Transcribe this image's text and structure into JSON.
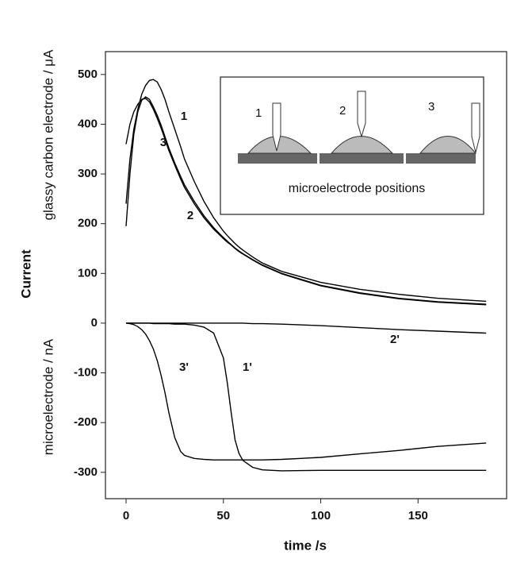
{
  "chart_data": {
    "type": "line",
    "xlabel": "time /s",
    "ylabel": "Current",
    "ylabel_upper": "glassy carbon electrode / μA",
    "ylabel_lower": "microelectrode / nA",
    "x": [
      0,
      2,
      4,
      6,
      8,
      10,
      12,
      14,
      16,
      18,
      20,
      22,
      25,
      28,
      30,
      35,
      40,
      45,
      50,
      52,
      54,
      56,
      58,
      60,
      65,
      70,
      80,
      100,
      120,
      140,
      160,
      185
    ],
    "series": [
      {
        "name": "1",
        "color": "#000000",
        "values": [
          240,
          330,
          390,
          430,
          460,
          478,
          488,
          490,
          485,
          470,
          450,
          425,
          390,
          355,
          330,
          285,
          245,
          212,
          185,
          176,
          168,
          160,
          153,
          147,
          133,
          121,
          104,
          82,
          68,
          58,
          50,
          44
        ]
      },
      {
        "name": "2",
        "color": "#000000",
        "values": [
          195,
          300,
          380,
          425,
          448,
          455,
          450,
          435,
          418,
          398,
          375,
          352,
          322,
          295,
          278,
          245,
          216,
          192,
          172,
          165,
          158,
          151,
          145,
          140,
          128,
          117,
          100,
          76,
          61,
          50,
          43,
          38
        ]
      },
      {
        "name": "3",
        "color": "#000000",
        "values": [
          360,
          400,
          425,
          440,
          450,
          452,
          445,
          430,
          412,
          392,
          370,
          347,
          318,
          290,
          273,
          240,
          212,
          189,
          170,
          163,
          157,
          150,
          144,
          139,
          127,
          116,
          99,
          75,
          60,
          49,
          42,
          37
        ]
      },
      {
        "name": "1'",
        "color": "#000000",
        "values": [
          0,
          0,
          0,
          0,
          0,
          0,
          0,
          -1,
          -1,
          -1,
          -1,
          -1,
          -2,
          -2,
          -2,
          -4,
          -8,
          -20,
          -70,
          -120,
          -180,
          -235,
          -262,
          -276,
          -290,
          -295,
          -297,
          -296,
          -296,
          -296,
          -296,
          -296
        ]
      },
      {
        "name": "2'",
        "color": "#000000",
        "values": [
          0,
          0,
          0,
          0,
          0,
          0,
          0,
          0,
          0,
          0,
          0,
          0,
          0,
          0,
          0,
          0,
          0,
          0,
          0,
          0,
          0,
          0,
          0,
          0,
          -1,
          -1,
          -2,
          -5,
          -9,
          -13,
          -16,
          -20
        ]
      },
      {
        "name": "3'",
        "color": "#000000",
        "values": [
          0,
          -1,
          -3,
          -7,
          -13,
          -22,
          -35,
          -52,
          -75,
          -105,
          -140,
          -180,
          -230,
          -258,
          -266,
          -272,
          -274,
          -275,
          -275,
          -275,
          -275,
          -275,
          -275,
          -275,
          -275,
          -275,
          -274,
          -270,
          -263,
          -256,
          -248,
          -241
        ]
      }
    ],
    "xlim": [
      -10.6,
      195.5
    ],
    "xticks": [
      0,
      50,
      100,
      150
    ],
    "ylim": [
      -353,
      546
    ],
    "yticks": [
      -300,
      -200,
      -100,
      0,
      100,
      200,
      300,
      400,
      500
    ],
    "inset": {
      "labels": [
        "1",
        "2",
        "3"
      ],
      "caption": "microelectrode positions"
    }
  }
}
